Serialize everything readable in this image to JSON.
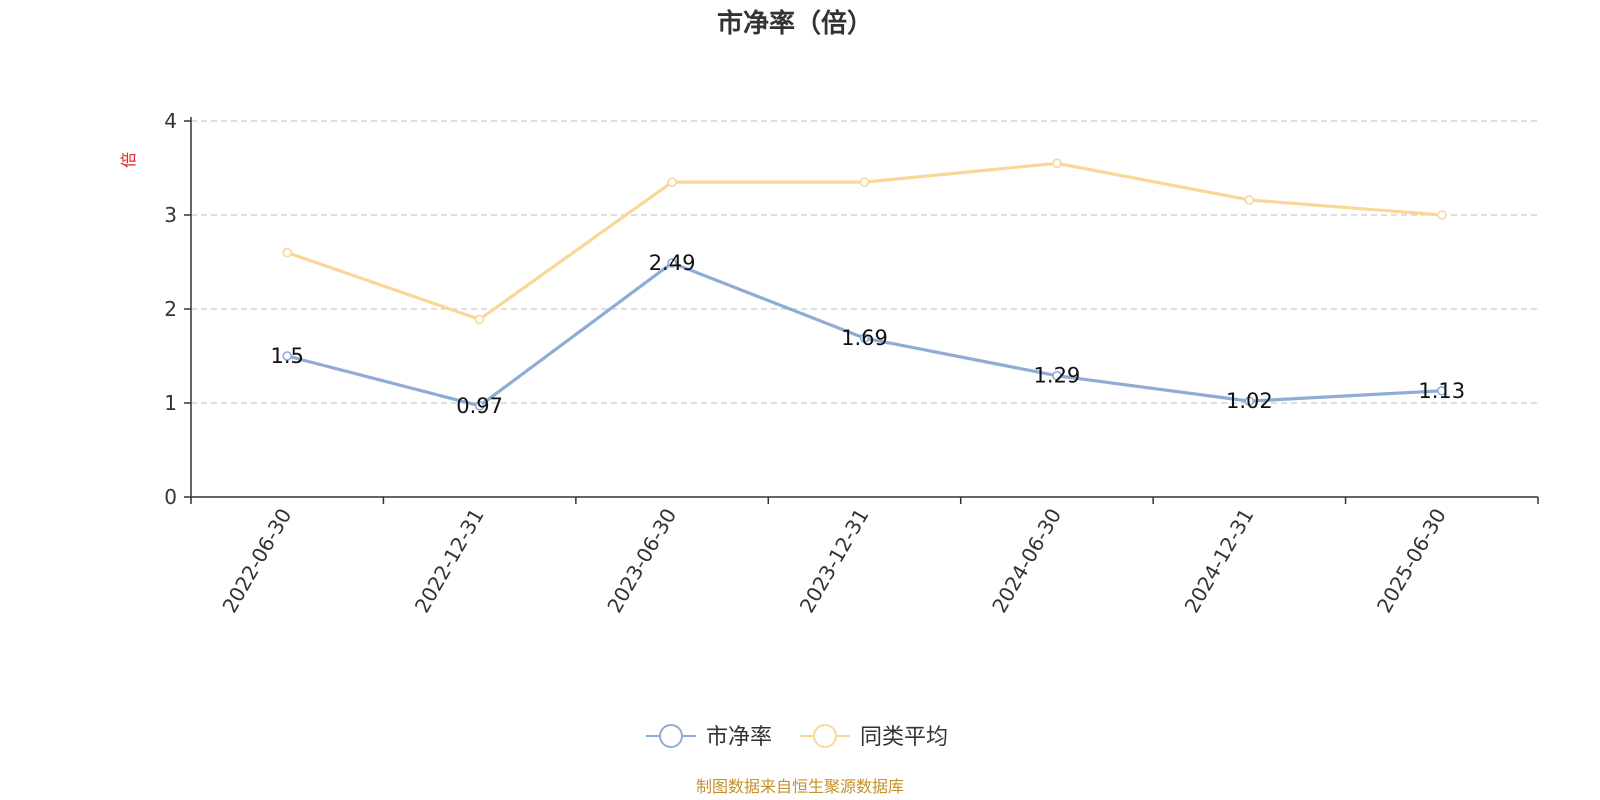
{
  "chart_data": {
    "type": "line",
    "title": "市净率（倍）",
    "ylabel": "倍",
    "ylim": [
      0,
      4
    ],
    "yticks": [
      "0",
      "1",
      "2",
      "3",
      "4"
    ],
    "categories": [
      "2022-06-30",
      "2022-12-31",
      "2023-06-30",
      "2023-12-31",
      "2024-06-30",
      "2024-12-31",
      "2025-06-30"
    ],
    "series": [
      {
        "name": "市净率",
        "values": [
          1.5,
          0.97,
          2.49,
          1.69,
          1.29,
          1.02,
          1.13
        ],
        "labels": [
          "1.5",
          "0.97",
          "2.49",
          "1.69",
          "1.29",
          "1.02",
          "1.13"
        ],
        "color": "#8eacd6"
      },
      {
        "name": "同类平均",
        "values": [
          2.6,
          1.89,
          3.35,
          3.35,
          3.55,
          3.16,
          3.0
        ],
        "color": "#fad797"
      }
    ],
    "grid": true,
    "legend": "bottom-center"
  },
  "footer": "制图数据来自恒生聚源数据库",
  "colors": {
    "axis": "#333333",
    "grid": "#cccccc",
    "unit": "#e8232d",
    "footer": "#c7902a"
  }
}
